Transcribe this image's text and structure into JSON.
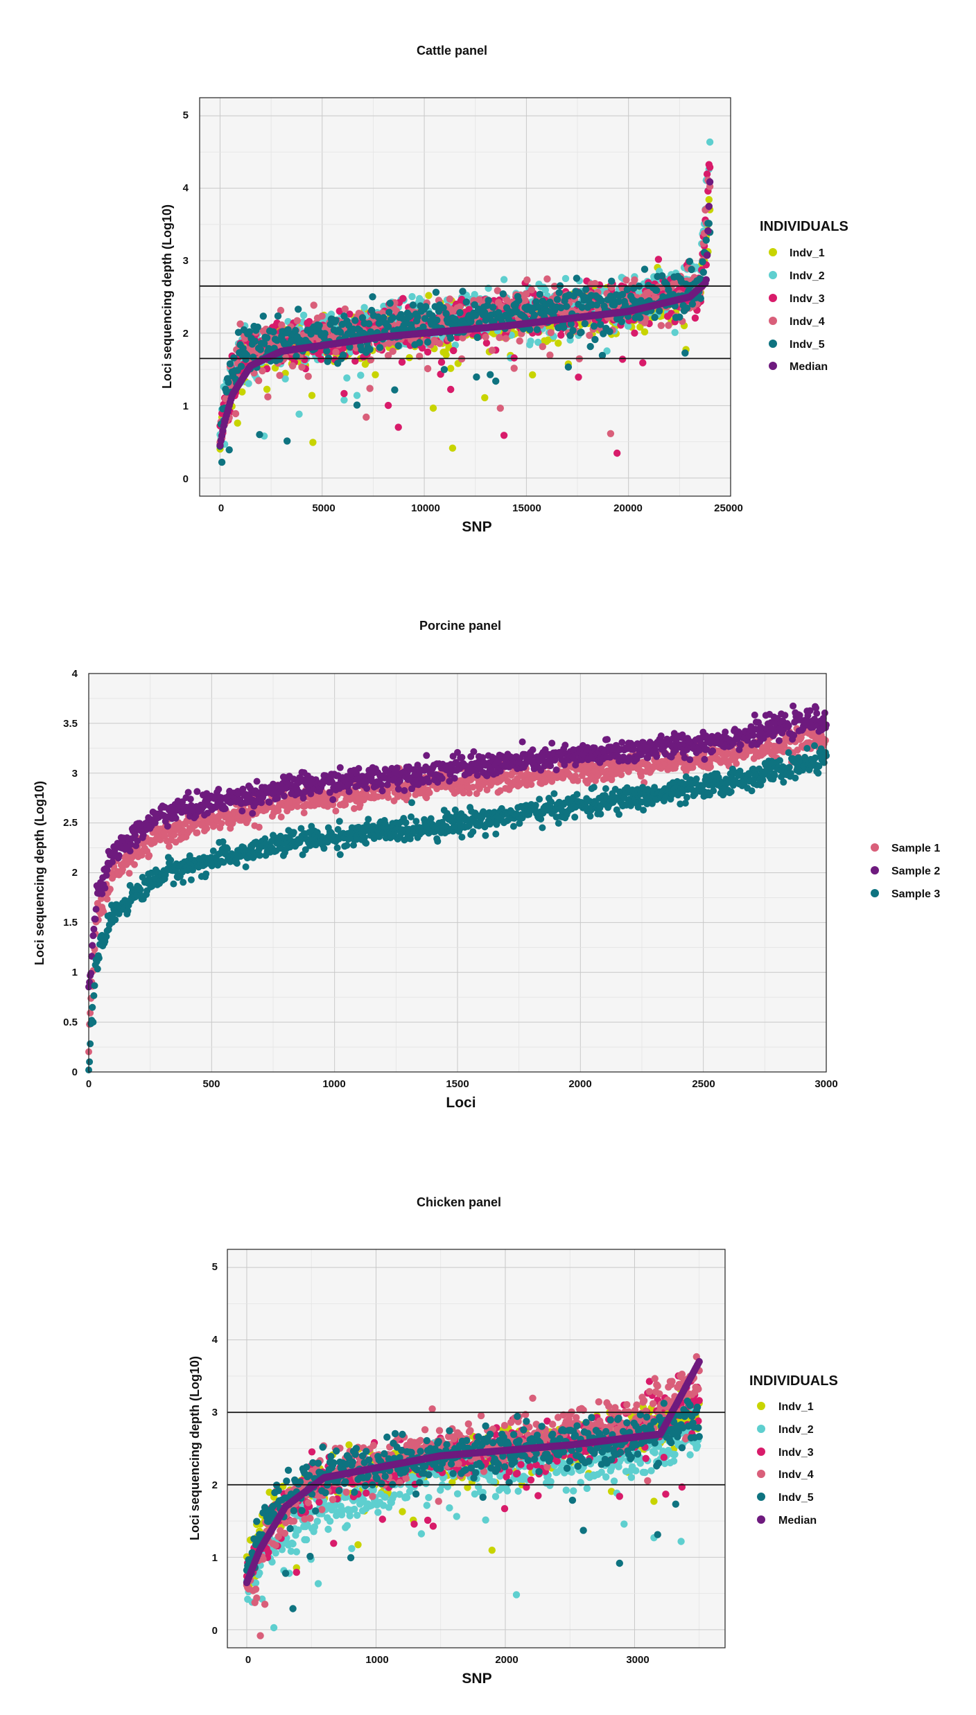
{
  "colors": {
    "indv_1": "#c8d400",
    "indv_2": "#5ecfcf",
    "indv_3": "#d81b6a",
    "indv_4": "#d95f7a",
    "indv_5": "#0e7380",
    "median": "#6e1a7e",
    "sample_1": "#d95f7a",
    "sample_2": "#6e1a7e",
    "sample_3": "#0e7380"
  },
  "chart_data": [
    {
      "title": "Cattle panel",
      "type": "scatter",
      "xlabel": "SNP",
      "ylabel": "Loci sequencing depth (Log10)",
      "xlim": [
        -1000,
        25000
      ],
      "ylim": [
        -0.25,
        5.25
      ],
      "xticks": [
        "0",
        "5000",
        "10000",
        "15000",
        "20000",
        "25000"
      ],
      "yticks": [
        "0",
        "1",
        "2",
        "3",
        "4",
        "5"
      ],
      "hlines": [
        1.65,
        2.65
      ],
      "grid": true,
      "legend_title": "INDIVIDUALS",
      "legend_position": "right",
      "n_points": 24000,
      "series": [
        {
          "name": "Indv_1",
          "color": "#c8d400",
          "median_curve": [
            [
              0,
              0.45
            ],
            [
              300,
              1.0
            ],
            [
              1000,
              1.6
            ],
            [
              3000,
              1.8
            ],
            [
              12000,
              2.1
            ],
            [
              20000,
              2.3
            ],
            [
              23500,
              2.5
            ],
            [
              24000,
              3.8
            ]
          ]
        },
        {
          "name": "Indv_2",
          "color": "#5ecfcf",
          "median_curve": [
            [
              0,
              0.5
            ],
            [
              300,
              1.2
            ],
            [
              1000,
              1.7
            ],
            [
              3000,
              1.9
            ],
            [
              12000,
              2.25
            ],
            [
              20000,
              2.45
            ],
            [
              23500,
              2.7
            ],
            [
              24000,
              4.6
            ]
          ]
        },
        {
          "name": "Indv_3",
          "color": "#d81b6a",
          "median_curve": [
            [
              0,
              0.5
            ],
            [
              300,
              1.1
            ],
            [
              1000,
              1.7
            ],
            [
              3000,
              1.85
            ],
            [
              12000,
              2.2
            ],
            [
              20000,
              2.4
            ],
            [
              23500,
              2.6
            ],
            [
              24000,
              4.5
            ]
          ]
        },
        {
          "name": "Indv_4",
          "color": "#d95f7a",
          "median_curve": [
            [
              0,
              0.5
            ],
            [
              300,
              1.1
            ],
            [
              1000,
              1.7
            ],
            [
              3000,
              1.85
            ],
            [
              12000,
              2.2
            ],
            [
              20000,
              2.4
            ],
            [
              23500,
              2.6
            ],
            [
              24000,
              4.4
            ]
          ]
        },
        {
          "name": "Indv_5",
          "color": "#0e7380",
          "median_curve": [
            [
              0,
              0.5
            ],
            [
              300,
              1.2
            ],
            [
              1000,
              1.75
            ],
            [
              3000,
              1.9
            ],
            [
              12000,
              2.2
            ],
            [
              20000,
              2.4
            ],
            [
              23500,
              2.6
            ],
            [
              24000,
              3.5
            ]
          ]
        },
        {
          "name": "Median",
          "color": "#6e1a7e",
          "median_curve": [
            [
              0,
              0.45
            ],
            [
              200,
              0.75
            ],
            [
              600,
              1.15
            ],
            [
              1500,
              1.55
            ],
            [
              3000,
              1.75
            ],
            [
              8000,
              1.95
            ],
            [
              14000,
              2.1
            ],
            [
              20000,
              2.3
            ],
            [
              23000,
              2.5
            ],
            [
              23800,
              2.7
            ],
            [
              24000,
              4.2
            ]
          ]
        }
      ]
    },
    {
      "title": "Porcine panel",
      "type": "scatter",
      "xlabel": "Loci",
      "ylabel": "Loci sequencing depth (Log10)",
      "xlim": [
        0,
        3000
      ],
      "ylim": [
        0,
        4
      ],
      "xticks": [
        "0",
        "500",
        "1000",
        "1500",
        "2000",
        "2500",
        "3000"
      ],
      "yticks": [
        "0",
        "0.5",
        "1",
        "1.5",
        "2",
        "2.5",
        "3",
        "3.5",
        "4"
      ],
      "grid": true,
      "legend_position": "right",
      "n_points": 3000,
      "series": [
        {
          "name": "Sample 1",
          "color": "#d95f7a",
          "curve": [
            [
              0,
              0.3
            ],
            [
              30,
              1.5
            ],
            [
              100,
              2.0
            ],
            [
              300,
              2.4
            ],
            [
              800,
              2.7
            ],
            [
              1500,
              2.9
            ],
            [
              2500,
              3.15
            ],
            [
              3000,
              3.35
            ]
          ]
        },
        {
          "name": "Sample 2",
          "color": "#6e1a7e",
          "curve": [
            [
              0,
              0.8
            ],
            [
              30,
              1.7
            ],
            [
              100,
              2.2
            ],
            [
              300,
              2.6
            ],
            [
              800,
              2.85
            ],
            [
              1500,
              3.05
            ],
            [
              2500,
              3.3
            ],
            [
              3000,
              3.55
            ]
          ]
        },
        {
          "name": "Sample 3",
          "color": "#0e7380",
          "curve": [
            [
              0,
              0.02
            ],
            [
              30,
              1.1
            ],
            [
              100,
              1.6
            ],
            [
              300,
              2.0
            ],
            [
              800,
              2.3
            ],
            [
              1500,
              2.5
            ],
            [
              2500,
              2.85
            ],
            [
              3000,
              3.15
            ]
          ]
        }
      ]
    },
    {
      "title": "Chicken panel",
      "type": "scatter",
      "xlabel": "SNP",
      "ylabel": "Loci sequencing depth (Log10)",
      "xlim": [
        -150,
        3700
      ],
      "ylim": [
        -0.25,
        5.25
      ],
      "xticks": [
        "0",
        "1000",
        "2000",
        "3000"
      ],
      "yticks": [
        "0",
        "1",
        "2",
        "3",
        "4",
        "5"
      ],
      "hlines": [
        2.0,
        3.0
      ],
      "grid": true,
      "legend_title": "INDIVIDUALS",
      "legend_position": "right",
      "n_points": 3500,
      "series": [
        {
          "name": "Indv_1",
          "color": "#c8d400",
          "median_curve": [
            [
              0,
              0.8
            ],
            [
              200,
              1.6
            ],
            [
              500,
              2.0
            ],
            [
              1500,
              2.35
            ],
            [
              3000,
              2.7
            ],
            [
              3500,
              3.0
            ]
          ]
        },
        {
          "name": "Indv_2",
          "color": "#5ecfcf",
          "median_curve": [
            [
              0,
              0.6
            ],
            [
              200,
              1.1
            ],
            [
              500,
              1.6
            ],
            [
              1500,
              2.15
            ],
            [
              3000,
              2.4
            ],
            [
              3500,
              2.7
            ]
          ]
        },
        {
          "name": "Indv_3",
          "color": "#d81b6a",
          "median_curve": [
            [
              0,
              0.8
            ],
            [
              200,
              1.5
            ],
            [
              500,
              2.0
            ],
            [
              1500,
              2.35
            ],
            [
              3000,
              2.7
            ],
            [
              3500,
              3.2
            ]
          ]
        },
        {
          "name": "Indv_4",
          "color": "#d95f7a",
          "median_curve": [
            [
              0,
              0.6
            ],
            [
              200,
              1.4
            ],
            [
              500,
              2.1
            ],
            [
              1500,
              2.5
            ],
            [
              3000,
              2.85
            ],
            [
              3500,
              3.5
            ]
          ]
        },
        {
          "name": "Indv_5",
          "color": "#0e7380",
          "median_curve": [
            [
              0,
              0.9
            ],
            [
              200,
              1.7
            ],
            [
              500,
              2.1
            ],
            [
              1500,
              2.4
            ],
            [
              3000,
              2.65
            ],
            [
              3500,
              2.9
            ]
          ]
        },
        {
          "name": "Median",
          "color": "#6e1a7e",
          "median_curve": [
            [
              0,
              0.65
            ],
            [
              100,
              1.1
            ],
            [
              300,
              1.7
            ],
            [
              600,
              2.1
            ],
            [
              1500,
              2.4
            ],
            [
              2500,
              2.55
            ],
            [
              3200,
              2.7
            ],
            [
              3500,
              3.7
            ]
          ]
        }
      ]
    }
  ]
}
